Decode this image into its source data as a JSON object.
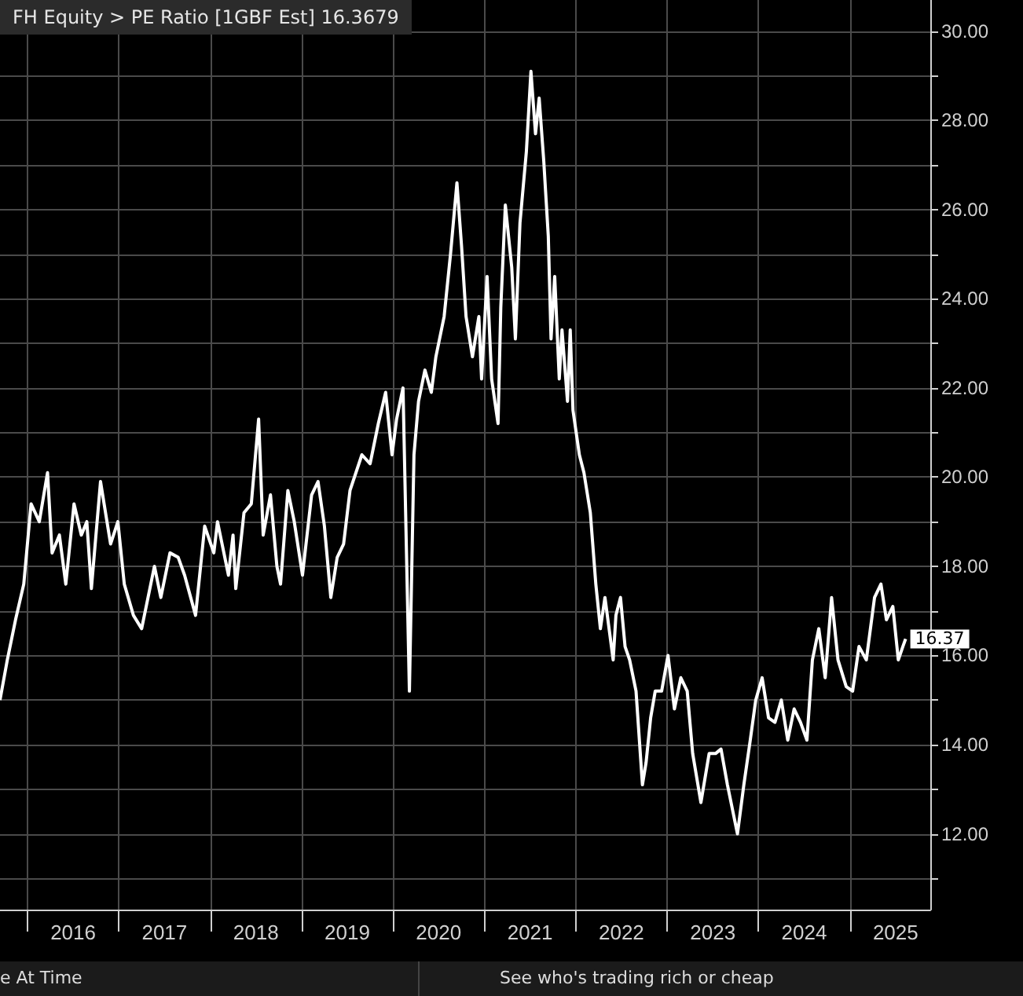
{
  "chart_data": {
    "type": "line",
    "title": "FH Equity > PE Ratio [1GBF Est] 16.3679",
    "x": [
      2015.7,
      2015.78,
      2015.87,
      2015.96,
      2016.04,
      2016.13,
      2016.22,
      2016.27,
      2016.35,
      2016.42,
      2016.51,
      2016.59,
      2016.65,
      2016.7,
      2016.8,
      2016.91,
      2016.99,
      2017.06,
      2017.16,
      2017.25,
      2017.39,
      2017.46,
      2017.56,
      2017.65,
      2017.72,
      2017.84,
      2017.94,
      2018.04,
      2018.08,
      2018.2,
      2018.25,
      2018.28,
      2018.37,
      2018.45,
      2018.53,
      2018.58,
      2018.66,
      2018.73,
      2018.77,
      2018.85,
      2018.92,
      2019.01,
      2019.11,
      2019.18,
      2019.25,
      2019.32,
      2019.39,
      2019.46,
      2019.53,
      2019.66,
      2019.75,
      2019.84,
      2019.92,
      2019.99,
      2020.04,
      2020.11,
      2020.18,
      2020.23,
      2020.28,
      2020.35,
      2020.42,
      2020.47,
      2020.56,
      2020.63,
      2020.7,
      2020.75,
      2020.8,
      2020.87,
      2020.94,
      2020.97,
      2021.03,
      2021.08,
      2021.15,
      2021.18,
      2021.23,
      2021.3,
      2021.34,
      2021.39,
      2021.46,
      2021.51,
      2021.56,
      2021.6,
      2021.65,
      2021.7,
      2021.73,
      2021.77,
      2021.82,
      2021.85,
      2021.91,
      2021.94,
      2021.97,
      2022.04,
      2022.09,
      2022.16,
      2022.22,
      2022.27,
      2022.32,
      2022.41,
      2022.44,
      2022.49,
      2022.54,
      2022.59,
      2022.66,
      2022.73,
      2022.77,
      2022.82,
      2022.87,
      2022.94,
      2023.01,
      2023.08,
      2023.15,
      2023.22,
      2023.28,
      2023.37,
      2023.46,
      2023.53,
      2023.59,
      2023.66,
      2023.73,
      2023.77,
      2023.84,
      2023.91,
      2023.97,
      2024.04,
      2024.11,
      2024.18,
      2024.25,
      2024.32,
      2024.39,
      2024.46,
      2024.53,
      2024.59,
      2024.66,
      2024.73,
      2024.8,
      2024.87,
      2024.96,
      2025.03,
      2025.1,
      2025.18,
      2025.27,
      2025.34,
      2025.4,
      2025.47,
      2025.53,
      2025.58,
      2025.61
    ],
    "values": [
      15.0,
      15.9,
      16.8,
      17.6,
      19.4,
      19.0,
      20.1,
      18.3,
      18.7,
      17.6,
      19.4,
      18.7,
      19.0,
      17.5,
      19.9,
      18.5,
      19.0,
      17.6,
      16.9,
      16.6,
      18.0,
      17.3,
      18.3,
      18.2,
      17.8,
      16.9,
      18.9,
      18.3,
      19.0,
      17.8,
      18.7,
      17.5,
      19.2,
      19.4,
      21.3,
      18.7,
      19.6,
      18.0,
      17.6,
      19.7,
      19.0,
      17.8,
      19.6,
      19.9,
      18.9,
      17.3,
      18.2,
      18.5,
      19.7,
      20.5,
      20.3,
      21.2,
      21.9,
      20.5,
      21.3,
      22.0,
      15.2,
      20.5,
      21.7,
      22.4,
      21.9,
      22.7,
      23.6,
      25.0,
      26.6,
      25.2,
      23.6,
      22.7,
      23.6,
      22.2,
      24.5,
      22.2,
      21.2,
      23.8,
      26.1,
      24.7,
      23.1,
      25.7,
      27.3,
      29.1,
      27.7,
      28.5,
      27.1,
      25.4,
      23.1,
      24.5,
      22.2,
      23.3,
      21.7,
      23.3,
      21.5,
      20.5,
      20.1,
      19.2,
      17.6,
      16.6,
      17.3,
      15.9,
      16.9,
      17.3,
      16.2,
      15.9,
      15.2,
      13.1,
      13.6,
      14.6,
      15.2,
      15.2,
      16.0,
      14.8,
      15.5,
      15.2,
      13.8,
      12.7,
      13.8,
      13.8,
      13.9,
      13.1,
      12.4,
      12.0,
      13.1,
      14.1,
      15.0,
      15.5,
      14.6,
      14.5,
      15.0,
      14.1,
      14.8,
      14.5,
      14.1,
      15.9,
      16.6,
      15.5,
      17.3,
      15.9,
      15.3,
      15.2,
      16.2,
      15.9,
      17.3,
      17.6,
      16.8,
      17.1,
      15.9,
      16.2,
      16.37
    ],
    "value_labels": [
      null,
      null,
      null,
      null,
      null,
      null,
      null,
      null,
      null,
      null,
      null,
      null,
      null,
      null,
      null,
      null,
      null,
      null,
      null,
      null,
      null,
      null,
      null,
      null,
      null,
      null,
      null,
      null,
      null,
      null,
      null,
      null,
      null,
      null,
      null,
      null,
      null,
      null,
      null,
      null,
      null,
      null,
      null,
      null,
      null,
      null,
      null,
      null,
      null,
      null,
      null,
      null,
      null,
      null,
      null,
      null,
      null,
      null,
      null,
      null,
      null,
      null,
      null,
      null,
      null,
      null,
      null,
      null,
      null,
      null,
      null,
      null,
      null,
      null,
      null,
      null,
      null,
      null,
      null,
      null,
      null,
      null,
      null,
      null,
      null,
      null,
      null,
      null,
      null,
      null,
      null,
      null,
      null,
      null,
      null,
      null,
      null,
      null,
      null,
      null,
      null,
      null,
      null,
      null,
      null,
      null,
      null,
      null,
      null,
      null,
      null,
      null,
      null,
      null,
      null,
      null,
      null,
      null,
      null,
      null,
      null,
      null,
      null,
      null,
      null,
      null,
      null,
      null,
      null,
      null,
      null,
      null,
      null,
      null,
      null,
      null,
      null,
      null,
      null,
      null,
      null,
      null,
      null,
      null,
      null,
      null,
      "16.37"
    ],
    "color": "#ffffff",
    "xlim": [
      2015.7,
      2025.88
    ],
    "xticks": [
      {
        "value": 2016,
        "label": null
      },
      {
        "value": 2016.5,
        "label": "2016"
      },
      {
        "value": 2017,
        "label": null
      },
      {
        "value": 2017.5,
        "label": "2017"
      },
      {
        "value": 2018,
        "label": null
      },
      {
        "value": 2018.5,
        "label": "2018"
      },
      {
        "value": 2019,
        "label": null
      },
      {
        "value": 2019.5,
        "label": "2019"
      },
      {
        "value": 2020,
        "label": null
      },
      {
        "value": 2020.5,
        "label": "2020"
      },
      {
        "value": 2021,
        "label": null
      },
      {
        "value": 2021.5,
        "label": "2021"
      },
      {
        "value": 2022,
        "label": null
      },
      {
        "value": 2022.5,
        "label": "2022"
      },
      {
        "value": 2023,
        "label": null
      },
      {
        "value": 2023.5,
        "label": "2023"
      },
      {
        "value": 2024,
        "label": null
      },
      {
        "value": 2024.5,
        "label": "2024"
      },
      {
        "value": 2025,
        "label": null
      },
      {
        "value": 2025.5,
        "label": "2025"
      }
    ],
    "ylim": [
      10.3,
      30.7
    ],
    "yticks": [
      {
        "value": 11,
        "label": null
      },
      {
        "value": 12,
        "label": "12.00"
      },
      {
        "value": 13,
        "label": null
      },
      {
        "value": 14,
        "label": "14.00"
      },
      {
        "value": 15,
        "label": null
      },
      {
        "value": 16,
        "label": "16.00"
      },
      {
        "value": 17,
        "label": null
      },
      {
        "value": 18,
        "label": "18.00"
      },
      {
        "value": 19,
        "label": null
      },
      {
        "value": 20,
        "label": "20.00"
      },
      {
        "value": 21,
        "label": null
      },
      {
        "value": 22,
        "label": "22.00"
      },
      {
        "value": 23,
        "label": null
      },
      {
        "value": 24,
        "label": "24.00"
      },
      {
        "value": 25,
        "label": null
      },
      {
        "value": 26,
        "label": "26.00"
      },
      {
        "value": 27,
        "label": null
      },
      {
        "value": 28,
        "label": "28.00"
      },
      {
        "value": 29,
        "label": null
      },
      {
        "value": 30,
        "label": "30.00"
      }
    ],
    "grid": true,
    "annotations": [
      "e At Time",
      "See who's trading rich or cheap"
    ]
  }
}
